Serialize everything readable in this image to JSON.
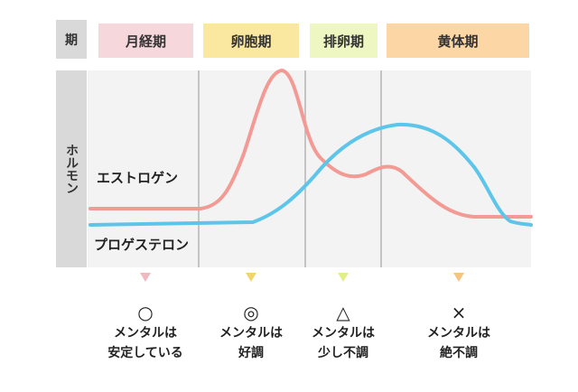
{
  "header_label": "期",
  "side_label": "ホルモン",
  "phases": [
    {
      "name": "月経期",
      "color": "#f6d7db",
      "marker_color": "#f0b9c0",
      "symbol": "○",
      "line1": "メンタルは",
      "line2": "安定している"
    },
    {
      "name": "卵胞期",
      "color": "#fbe8a0",
      "marker_color": "#f2d56a",
      "symbol": "◎",
      "line1": "メンタルは",
      "line2": "好調"
    },
    {
      "name": "排卵期",
      "color": "#eef6c2",
      "marker_color": "#e2ef86",
      "symbol": "△",
      "line1": "メンタルは",
      "line2": "少し不調"
    },
    {
      "name": "黄体期",
      "color": "#fcd6a4",
      "marker_color": "#f6c47c",
      "symbol": "×",
      "line1": "メンタルは",
      "line2": "絶不調"
    }
  ],
  "curves": {
    "estrogen": {
      "label": "エストロゲン",
      "color": "#f29a93"
    },
    "progesterone": {
      "label": "プロゲステロン",
      "color": "#5ec5ea"
    }
  }
}
